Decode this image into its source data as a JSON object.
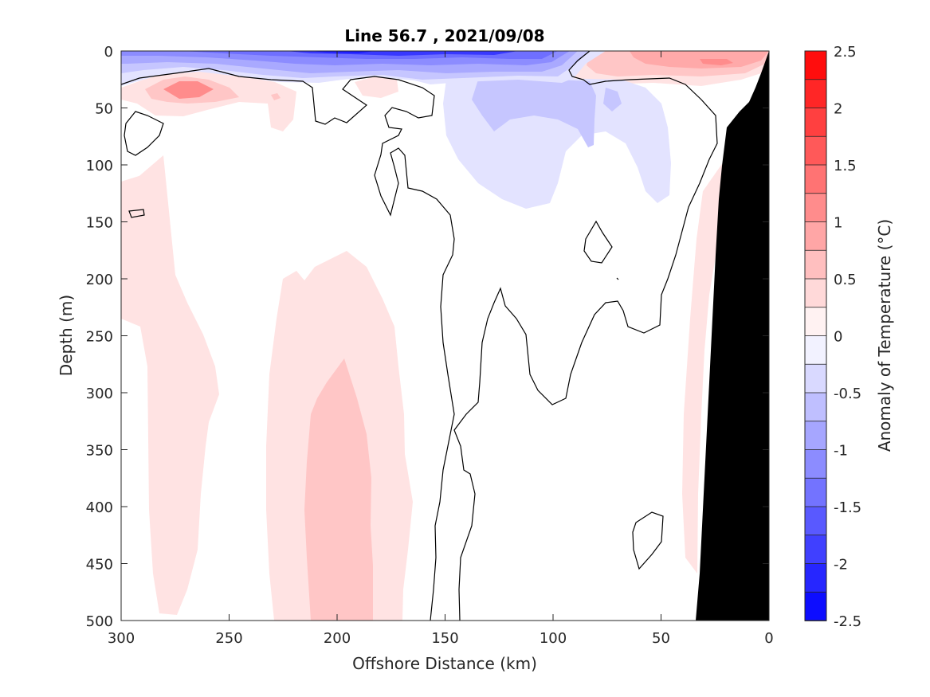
{
  "chart_data": {
    "type": "heatmap",
    "title": "Line 56.7 , 2021/09/08",
    "xlabel": "Offshore Distance (km)",
    "ylabel": "Depth (m)",
    "xlim": [
      300,
      0
    ],
    "ylim": [
      0,
      500
    ],
    "x_reversed": true,
    "y_reversed": true,
    "xticks": [
      300,
      250,
      200,
      150,
      100,
      50,
      0
    ],
    "yticks": [
      0,
      50,
      100,
      150,
      200,
      250,
      300,
      350,
      400,
      450,
      500
    ],
    "colorbar": {
      "label": "Anomaly of Temperature (°C)",
      "range": [
        -2.5,
        2.5
      ],
      "step": 0.25,
      "ticks": [
        2.5,
        2,
        1.5,
        1,
        0.5,
        0,
        -0.5,
        -1,
        -1.5,
        -2,
        -2.5
      ],
      "colormap": "blue-white-red",
      "cold_color": "#0000ff",
      "warm_color": "#ff0000"
    },
    "bathymetry_color": "#000000",
    "anomaly_regions": [
      {
        "label": "surface cold core",
        "x_range": [
          300,
          80
        ],
        "depth_range": [
          0,
          25
        ],
        "anomaly": -2.0
      },
      {
        "label": "subsurface cold tongue",
        "x_range": [
          150,
          40
        ],
        "depth_range": [
          25,
          130
        ],
        "anomaly": -0.5
      },
      {
        "label": "nearshore surface warm",
        "x_range": [
          85,
          0
        ],
        "depth_range": [
          0,
          35
        ],
        "anomaly": 1.25
      },
      {
        "label": "offshore subsurface warm",
        "x_range": [
          295,
          215
        ],
        "depth_range": [
          20,
          60
        ],
        "anomaly": 1.0
      },
      {
        "label": "offshore deep warm band",
        "x_range": [
          300,
          255
        ],
        "depth_range": [
          190,
          500
        ],
        "anomaly": 0.5
      },
      {
        "label": "mid deep warm band",
        "x_range": [
          230,
          165
        ],
        "depth_range": [
          180,
          500
        ],
        "anomaly": 0.5
      },
      {
        "label": "mid deep warm core",
        "x_range": [
          215,
          185
        ],
        "depth_range": [
          270,
          500
        ],
        "anomaly": 0.75
      },
      {
        "label": "slope warm band",
        "x_range": [
          40,
          25
        ],
        "depth_range": [
          80,
          510
        ],
        "anomaly": 0.5
      }
    ]
  }
}
